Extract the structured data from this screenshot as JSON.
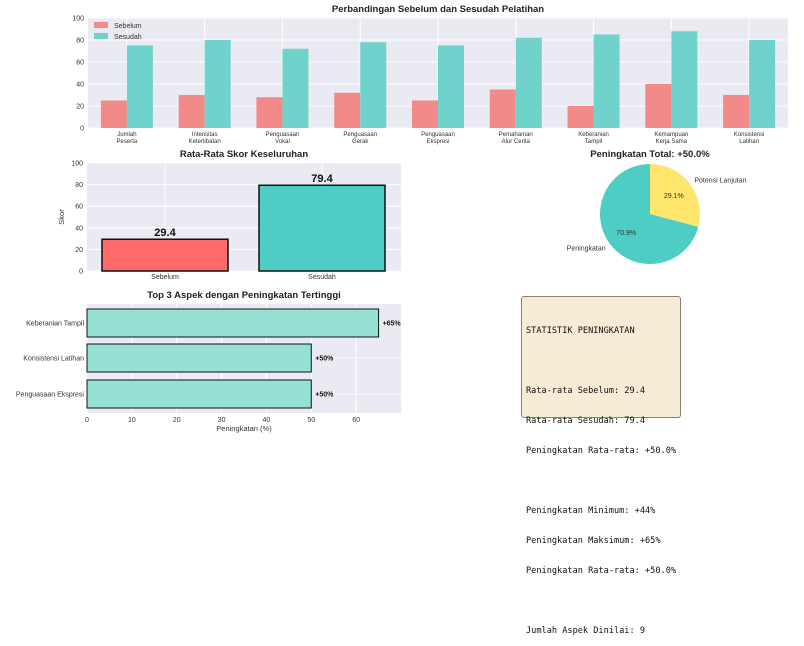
{
  "chart_data": [
    {
      "type": "bar",
      "title": "Perbandingan Sebelum dan Sesudah Pelatihan",
      "categories": [
        [
          "Jumlah",
          "Peserta"
        ],
        [
          "Intensitas",
          "Keterlibatan"
        ],
        [
          "Penguasaan",
          "Vokal"
        ],
        [
          "Penguasaan",
          "Gerak"
        ],
        [
          "Penguasaan",
          "Ekspresi"
        ],
        [
          "Pemahaman",
          "Alur Cerita"
        ],
        [
          "Keberanian",
          "Tampil"
        ],
        [
          "Kemampuan",
          "Kerja Sama"
        ],
        [
          "Konsistensi",
          "Latihan"
        ]
      ],
      "series": [
        {
          "name": "Sebelum",
          "values": [
            25,
            30,
            28,
            32,
            25,
            35,
            20,
            40,
            30
          ],
          "color": "#f38a8a"
        },
        {
          "name": "Sesudah",
          "values": [
            75,
            80,
            72,
            78,
            75,
            82,
            85,
            88,
            80
          ],
          "color": "#6fd3cc"
        }
      ],
      "ylim": [
        0,
        100
      ],
      "yticks": [
        0,
        20,
        40,
        60,
        80,
        100
      ],
      "legend": "top-left",
      "grid": true
    },
    {
      "type": "bar",
      "title": "Rata-Rata Skor Keseluruhan",
      "categories": [
        "Sebelum",
        "Sesudah"
      ],
      "values": [
        29.4,
        79.4
      ],
      "labels": [
        "29.4",
        "79.4"
      ],
      "colors": [
        "#ff6b6b",
        "#4ecdc4"
      ],
      "ylabel": "Skor",
      "ylim": [
        0,
        100
      ],
      "yticks": [
        0,
        20,
        40,
        60,
        80,
        100
      ],
      "grid": true
    },
    {
      "type": "pie",
      "title": "Peningkatan Total: +50.0%",
      "slices": [
        {
          "label": "Peningkatan",
          "value": 70.9,
          "pct": "70.9%",
          "color": "#4ecdc4"
        },
        {
          "label": "Potensi Lanjutan",
          "value": 29.1,
          "pct": "29.1%",
          "color": "#ffe66d"
        }
      ]
    },
    {
      "type": "bar",
      "orientation": "horizontal",
      "title": "Top 3 Aspek dengan Peningkatan Tertinggi",
      "categories": [
        "Keberanian Tampil",
        "Konsistensi Latihan",
        "Penguasaan Ekspresi"
      ],
      "values": [
        65,
        50,
        50
      ],
      "labels": [
        "+65%",
        "+50%",
        "+50%"
      ],
      "color": "#95e1d3",
      "xlabel": "Peningkatan (%)",
      "xlim": [
        0,
        70
      ],
      "xticks": [
        0,
        10,
        20,
        30,
        40,
        50,
        60
      ],
      "grid": true
    }
  ],
  "stats": {
    "title": "STATISTIK PENINGKATAN",
    "lines": [
      "Rata-rata Sebelum: 29.4",
      "Rata-rata Sesudah: 79.4",
      "Peningkatan Rata-rata: +50.0%",
      "",
      "Peningkatan Minimum: +44%",
      "Peningkatan Maksimum: +65%",
      "Peningkatan Rata-rata: +50.0%",
      "",
      "Jumlah Aspek Dinilai: 9"
    ]
  }
}
